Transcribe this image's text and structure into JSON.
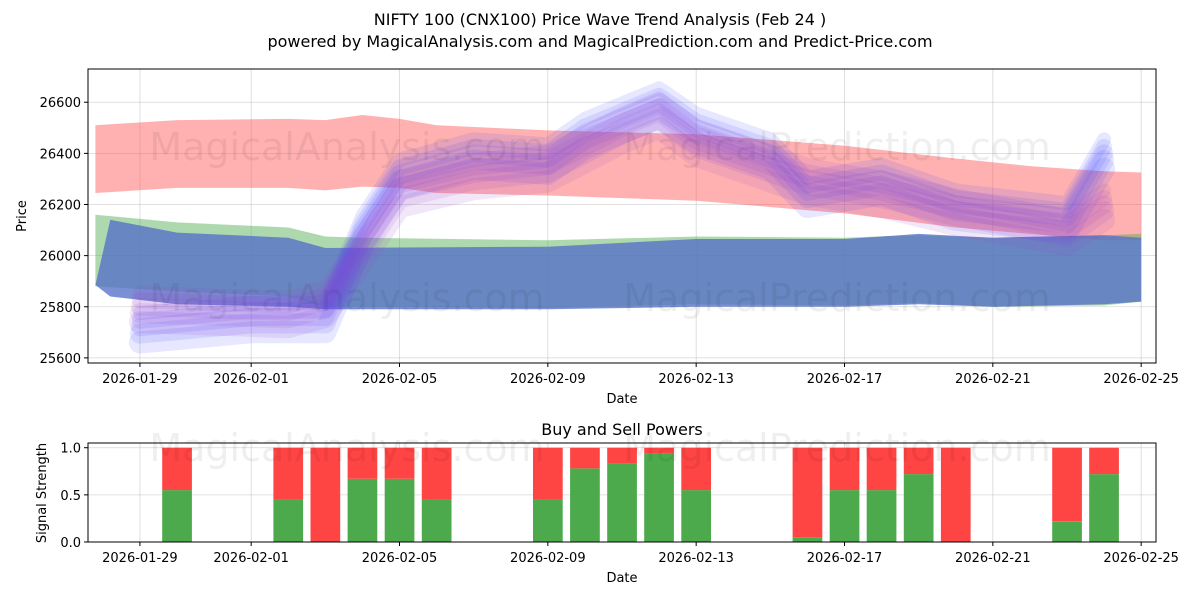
{
  "title_line1": "NIFTY 100 (CNX100) Price Wave Trend Analysis (Feb 24 )",
  "title_line2": "powered by MagicalAnalysis.com and MagicalPrediction.com and Predict-Price.com",
  "watermark_1": "MagicalAnalysis.com",
  "watermark_2": "MagicalPrediction.com",
  "colors": {
    "red": "#ff4444",
    "green": "#4caa4c",
    "blue": "#4444ff",
    "blue_solid": "#5570c8"
  },
  "chart_data": [
    {
      "type": "area",
      "title": "",
      "xlabel": "Date",
      "ylabel": "Price",
      "ylim": [
        25580,
        26730
      ],
      "xlim": [
        "2026-01-27.6",
        "2026-02-25.4"
      ],
      "x_ticks": [
        "2026-01-29",
        "2026-02-01",
        "2026-02-05",
        "2026-02-09",
        "2026-02-13",
        "2026-02-17",
        "2026-02-21",
        "2026-02-25"
      ],
      "y_ticks": [
        25600,
        25800,
        26000,
        26200,
        26400,
        26600
      ],
      "grid": true,
      "series": [
        {
          "name": "red band",
          "color": "red",
          "points": [
            {
              "x": "2026-01-27.8",
              "lo": 26245,
              "hi": 26510
            },
            {
              "x": "2026-01-30",
              "lo": 26265,
              "hi": 26530
            },
            {
              "x": "2026-02-02",
              "lo": 26265,
              "hi": 26535
            },
            {
              "x": "2026-02-03",
              "lo": 26255,
              "hi": 26530
            },
            {
              "x": "2026-02-04",
              "lo": 26270,
              "hi": 26550
            },
            {
              "x": "2026-02-05",
              "lo": 26265,
              "hi": 26535
            },
            {
              "x": "2026-02-06",
              "lo": 26245,
              "hi": 26510
            },
            {
              "x": "2026-02-09",
              "lo": 26235,
              "hi": 26490
            },
            {
              "x": "2026-02-13",
              "lo": 26215,
              "hi": 26475
            },
            {
              "x": "2026-02-17",
              "lo": 26165,
              "hi": 26430
            },
            {
              "x": "2026-02-20",
              "lo": 26110,
              "hi": 26380
            },
            {
              "x": "2026-02-22",
              "lo": 26085,
              "hi": 26350
            },
            {
              "x": "2026-02-24",
              "lo": 26060,
              "hi": 26330
            },
            {
              "x": "2026-02-25",
              "lo": 26060,
              "hi": 26325
            }
          ]
        },
        {
          "name": "green band",
          "color": "green",
          "points": [
            {
              "x": "2026-01-27.8",
              "lo": 25880,
              "hi": 26160
            },
            {
              "x": "2026-01-30",
              "lo": 25860,
              "hi": 26130
            },
            {
              "x": "2026-02-02",
              "lo": 25840,
              "hi": 26110
            },
            {
              "x": "2026-02-03",
              "lo": 25800,
              "hi": 26075
            },
            {
              "x": "2026-02-04",
              "lo": 25800,
              "hi": 26070
            },
            {
              "x": "2026-02-09",
              "lo": 25795,
              "hi": 26060
            },
            {
              "x": "2026-02-13",
              "lo": 25810,
              "hi": 26075
            },
            {
              "x": "2026-02-17",
              "lo": 25805,
              "hi": 26070
            },
            {
              "x": "2026-02-19",
              "lo": 25815,
              "hi": 26080
            },
            {
              "x": "2026-02-21",
              "lo": 25800,
              "hi": 26070
            },
            {
              "x": "2026-02-24",
              "lo": 25805,
              "hi": 26080
            },
            {
              "x": "2026-02-25",
              "lo": 25820,
              "hi": 26085
            }
          ]
        },
        {
          "name": "blue band",
          "color": "blue_solid",
          "points": [
            {
              "x": "2026-01-27.8",
              "lo": 25885,
              "hi": 25885
            },
            {
              "x": "2026-01-28.2",
              "lo": 25840,
              "hi": 26140
            },
            {
              "x": "2026-01-30",
              "lo": 25810,
              "hi": 26090
            },
            {
              "x": "2026-02-02",
              "lo": 25800,
              "hi": 26070
            },
            {
              "x": "2026-02-03",
              "lo": 25790,
              "hi": 26030
            },
            {
              "x": "2026-02-09",
              "lo": 25790,
              "hi": 26035
            },
            {
              "x": "2026-02-13",
              "lo": 25800,
              "hi": 26065
            },
            {
              "x": "2026-02-17",
              "lo": 25800,
              "hi": 26065
            },
            {
              "x": "2026-02-19",
              "lo": 25810,
              "hi": 26085
            },
            {
              "x": "2026-02-21",
              "lo": 25800,
              "hi": 26070
            },
            {
              "x": "2026-02-24",
              "lo": 25810,
              "hi": 26080
            },
            {
              "x": "2026-02-25",
              "lo": 25820,
              "hi": 26070
            }
          ]
        }
      ],
      "wave_trails": [
        {
          "name": "blue wave",
          "color": "blue",
          "points": [
            {
              "x": "2026-01-29",
              "y": 25720
            },
            {
              "x": "2026-02-01",
              "y": 25760
            },
            {
              "x": "2026-02-03",
              "y": 25760
            },
            {
              "x": "2026-02-04",
              "y": 26100
            },
            {
              "x": "2026-02-05",
              "y": 26320
            },
            {
              "x": "2026-02-07",
              "y": 26400
            },
            {
              "x": "2026-02-09",
              "y": 26380
            },
            {
              "x": "2026-02-10",
              "y": 26480
            },
            {
              "x": "2026-02-12",
              "y": 26600
            },
            {
              "x": "2026-02-13",
              "y": 26500
            },
            {
              "x": "2026-02-15",
              "y": 26400
            },
            {
              "x": "2026-02-16",
              "y": 26250
            },
            {
              "x": "2026-02-18",
              "y": 26300
            },
            {
              "x": "2026-02-20",
              "y": 26200
            },
            {
              "x": "2026-02-23",
              "y": 26150
            },
            {
              "x": "2026-02-24",
              "y": 26400
            }
          ]
        },
        {
          "name": "purple wave",
          "color": "purple",
          "points": [
            {
              "x": "2026-01-29",
              "y": 25800
            },
            {
              "x": "2026-02-02",
              "y": 25780
            },
            {
              "x": "2026-02-03",
              "y": 25820
            },
            {
              "x": "2026-02-05",
              "y": 26250
            },
            {
              "x": "2026-02-07",
              "y": 26320
            },
            {
              "x": "2026-02-09",
              "y": 26350
            },
            {
              "x": "2026-02-11",
              "y": 26500
            },
            {
              "x": "2026-02-12",
              "y": 26560
            },
            {
              "x": "2026-02-13",
              "y": 26450
            },
            {
              "x": "2026-02-16",
              "y": 26300
            },
            {
              "x": "2026-02-18",
              "y": 26250
            },
            {
              "x": "2026-02-20",
              "y": 26180
            },
            {
              "x": "2026-02-23",
              "y": 26100
            },
            {
              "x": "2026-02-24",
              "y": 26200
            }
          ]
        }
      ]
    },
    {
      "type": "bar",
      "stacked": true,
      "title": "Buy and Sell Powers",
      "xlabel": "Date",
      "ylabel": "Signal Strength",
      "ylim": [
        0,
        1.05
      ],
      "x_ticks": [
        "2026-01-29",
        "2026-02-01",
        "2026-02-05",
        "2026-02-09",
        "2026-02-13",
        "2026-02-17",
        "2026-02-21",
        "2026-02-25"
      ],
      "y_ticks": [
        "0.0",
        "0.5",
        "1.0"
      ],
      "grid": true,
      "categories": [
        "2026-01-30",
        "2026-02-02",
        "2026-02-03",
        "2026-02-04",
        "2026-02-05",
        "2026-02-06",
        "2026-02-09",
        "2026-02-10",
        "2026-02-11",
        "2026-02-12",
        "2026-02-13",
        "2026-02-16",
        "2026-02-17",
        "2026-02-18",
        "2026-02-19",
        "2026-02-20",
        "2026-02-23",
        "2026-02-24"
      ],
      "series": [
        {
          "name": "Buy",
          "color": "green",
          "values": [
            0.55,
            0.45,
            0.0,
            0.67,
            0.67,
            0.45,
            0.45,
            0.78,
            0.83,
            0.94,
            0.55,
            0.05,
            0.55,
            0.55,
            0.72,
            0.0,
            0.22,
            0.72
          ]
        },
        {
          "name": "Sell",
          "color": "red",
          "values": [
            0.45,
            0.55,
            1.0,
            0.33,
            0.33,
            0.55,
            0.55,
            0.22,
            0.17,
            0.06,
            0.45,
            0.95,
            0.45,
            0.45,
            0.28,
            1.0,
            0.78,
            0.28
          ]
        }
      ]
    }
  ]
}
